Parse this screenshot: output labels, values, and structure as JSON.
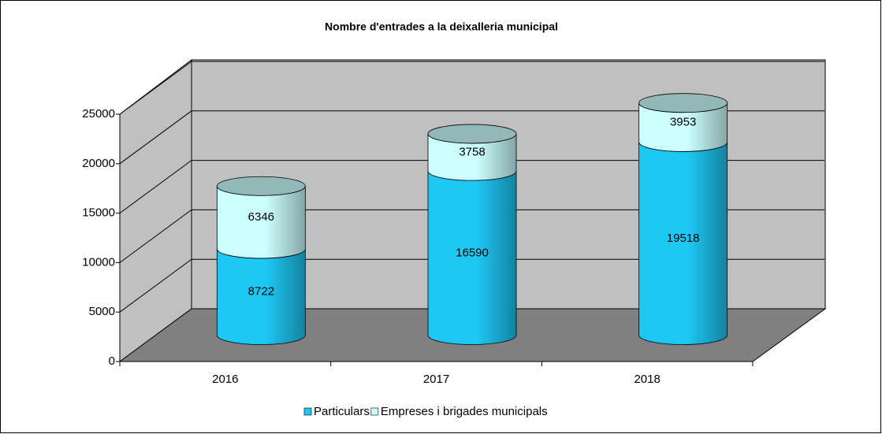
{
  "chart_data": {
    "type": "bar3d_stacked_cylinder",
    "title": "Nombre d'entrades a la deixalleria municipal",
    "categories": [
      "2016",
      "2017",
      "2018"
    ],
    "series": [
      {
        "name": "Particulars",
        "color": "#1ec8f5",
        "values": [
          8722,
          16590,
          19518
        ]
      },
      {
        "name": "Empreses i brigades municipals",
        "color": "#ccffff",
        "values": [
          6346,
          3758,
          3953
        ]
      }
    ],
    "ylim": [
      0,
      25000
    ],
    "yticks": [
      0,
      5000,
      10000,
      15000,
      20000,
      25000
    ],
    "grid": true,
    "legend_position": "bottom"
  }
}
